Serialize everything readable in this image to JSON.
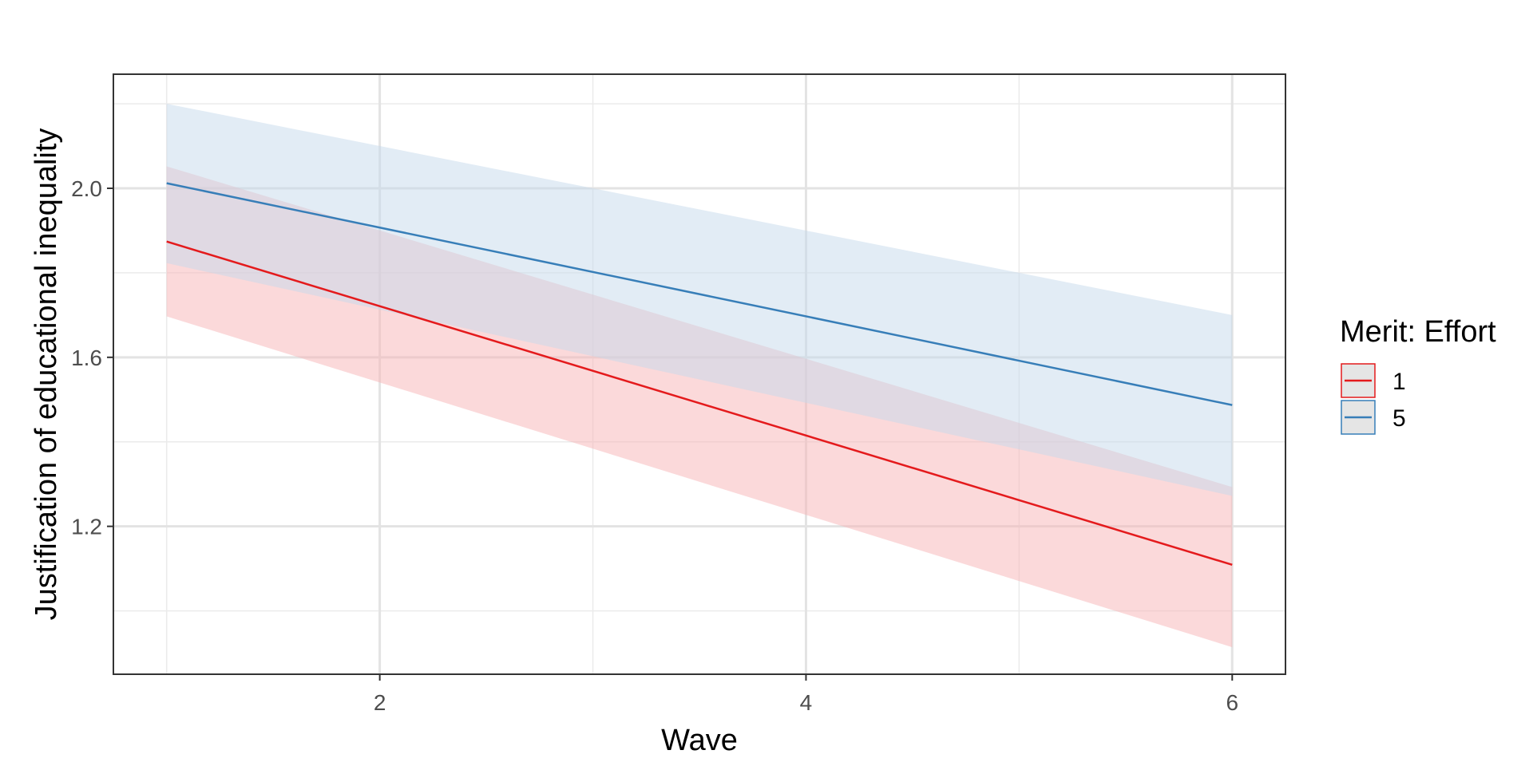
{
  "chart_data": {
    "type": "line",
    "title": "",
    "xlabel": "Wave",
    "ylabel": "Justification of educational inequality",
    "xlim": [
      0.75,
      6.25
    ],
    "ylim": [
      0.85,
      2.27
    ],
    "x_ticks": [
      2,
      4,
      6
    ],
    "x_tick_labels": [
      "2",
      "4",
      "6"
    ],
    "y_ticks": [
      1.2,
      1.6,
      2.0
    ],
    "y_tick_labels": [
      "1.2",
      "1.6",
      "2.0"
    ],
    "x": [
      1,
      6
    ],
    "grid": true,
    "legend_title": "Merit: Effort",
    "legend_position": "right",
    "series": [
      {
        "name": "1",
        "color": "#E41A1C",
        "fill_color": "#F8B4B6",
        "values": [
          1.874,
          1.109
        ],
        "lower": [
          1.697,
          0.914
        ],
        "upper": [
          2.052,
          1.293
        ]
      },
      {
        "name": "5",
        "color": "#377EB8",
        "fill_color": "#C6DAEC",
        "values": [
          2.012,
          1.487
        ],
        "lower": [
          1.823,
          1.272
        ],
        "upper": [
          2.2,
          1.7
        ]
      }
    ]
  }
}
